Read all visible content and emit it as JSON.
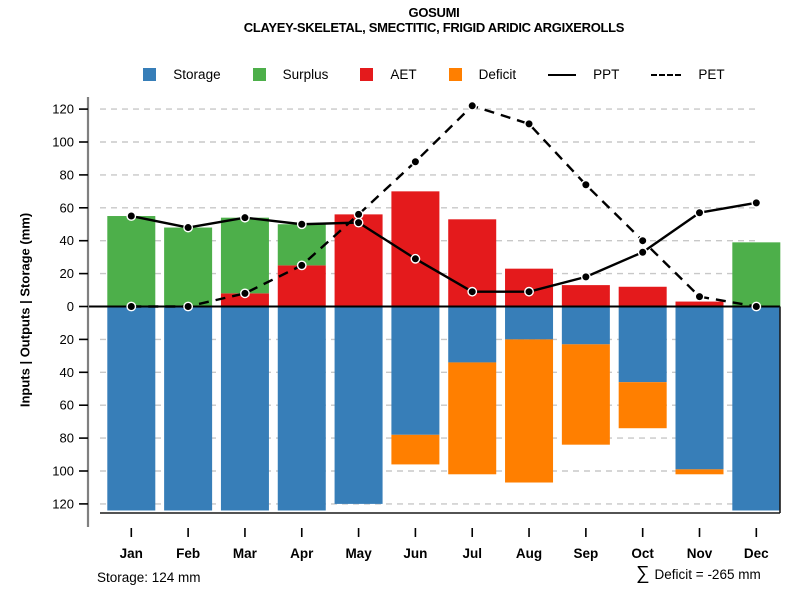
{
  "title": "GOSUMI",
  "subtitle": "CLAYEY-SKELETAL, SMECTITIC, FRIGID ARIDIC ARGIXEROLLS",
  "y_axis_label": "Inputs | Outputs | Storage  (mm)",
  "footer": {
    "storage_note": "Storage: 124 mm",
    "sigma_symbol": "∑",
    "deficit_note": "Deficit = -265 mm"
  },
  "legend": {
    "position": "top",
    "items": [
      {
        "label": "Storage",
        "color": "#377eb8",
        "marker": "square"
      },
      {
        "label": "Surplus",
        "color": "#4daf4a",
        "marker": "square"
      },
      {
        "label": "AET",
        "color": "#e41a1c",
        "marker": "square"
      },
      {
        "label": "Deficit",
        "color": "#ff7f00",
        "marker": "square"
      },
      {
        "label": "PPT",
        "color": "#000000",
        "marker": "solid-line"
      },
      {
        "label": "PET",
        "color": "#000000",
        "marker": "dashed-line"
      }
    ]
  },
  "colors": {
    "grid": "#c8c8c8",
    "y_axis": "#808080",
    "frame": "#1a1a1a",
    "zero_line": "#000000",
    "tick": "#000000"
  },
  "chart_data": {
    "type": "bar",
    "subtype": "mirrored water-balance: stacked bars up (AET+Surplus), stacked bars down (Storage+Deficit), overlaid lines (PPT solid, PET dashed)",
    "title": "GOSUMI",
    "subtitle": "CLAYEY-SKELETAL, SMECTITIC, FRIGID ARIDIC ARGIXEROLLS",
    "ylabel": "Inputs | Outputs | Storage  (mm)",
    "categories": [
      "Jan",
      "Feb",
      "Mar",
      "Apr",
      "May",
      "Jun",
      "Jul",
      "Aug",
      "Sep",
      "Oct",
      "Nov",
      "Dec"
    ],
    "y_ticks_mm": [
      120,
      100,
      80,
      60,
      40,
      20,
      0,
      20,
      40,
      60,
      80,
      100,
      120
    ],
    "ylim": [
      -126,
      126
    ],
    "grid": "horizontal dashed every 20 mm",
    "legend_position": "top-center",
    "series": [
      {
        "name": "AET",
        "kind": "bar-stack-up",
        "color": "#e41a1c",
        "values": [
          0,
          0,
          8,
          25,
          56,
          70,
          53,
          23,
          13,
          12,
          3,
          0
        ]
      },
      {
        "name": "Surplus",
        "kind": "bar-stack-up",
        "color": "#4daf4a",
        "values": [
          55,
          48,
          46,
          25,
          0,
          0,
          0,
          0,
          0,
          0,
          0,
          39
        ]
      },
      {
        "name": "Storage",
        "kind": "bar-stack-down",
        "color": "#377eb8",
        "values": [
          124,
          124,
          124,
          124,
          120,
          78,
          34,
          20,
          23,
          46,
          99,
          124
        ]
      },
      {
        "name": "Deficit",
        "kind": "bar-stack-down",
        "color": "#ff7f00",
        "values": [
          0,
          0,
          0,
          0,
          0,
          18,
          68,
          87,
          61,
          28,
          3,
          0
        ]
      },
      {
        "name": "PPT",
        "kind": "line-solid",
        "color": "#000000",
        "values": [
          55,
          48,
          54,
          50,
          51,
          29,
          9,
          9,
          18,
          33,
          57,
          63
        ]
      },
      {
        "name": "PET",
        "kind": "line-dashed",
        "color": "#000000",
        "values": [
          0,
          0,
          8,
          25,
          56,
          88,
          122,
          111,
          74,
          40,
          6,
          0
        ]
      }
    ],
    "annotations": {
      "storage_start": "Storage: 124 mm",
      "deficit_sum": "∑ Deficit = -265 mm"
    }
  }
}
